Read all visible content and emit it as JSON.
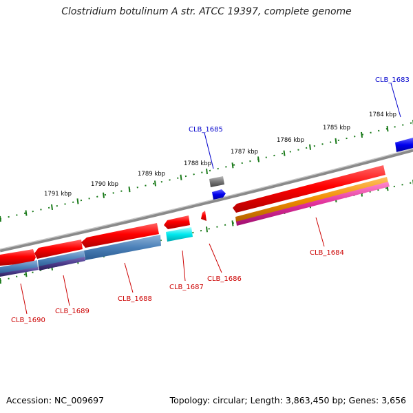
{
  "title": "Clostridium botulinum A str. ATCC 19397, complete genome",
  "footer": {
    "accession": "Accession: NC_009697",
    "summary": "Topology: circular; Length: 3,863,450 bp; Genes: 3,656"
  },
  "ruler": {
    "kbp_labels": [
      "1791 kbp",
      "1790 kbp",
      "1789 kbp",
      "1788 kbp",
      "1787 kbp",
      "1786 kbp",
      "1785 kbp",
      "1784 kbp"
    ]
  },
  "gene_labels": [
    {
      "name": "CLB_1683",
      "color": "#0000cc"
    },
    {
      "name": "CLB_1685",
      "color": "#0000cc"
    },
    {
      "name": "CLB_1684",
      "color": "#cc0000"
    },
    {
      "name": "CLB_1686",
      "color": "#cc0000"
    },
    {
      "name": "CLB_1687",
      "color": "#cc0000"
    },
    {
      "name": "CLB_1688",
      "color": "#cc0000"
    },
    {
      "name": "CLB_1689",
      "color": "#cc0000"
    },
    {
      "name": "CLB_1690",
      "color": "#cc0000"
    }
  ],
  "colors": {
    "backbone": "#8a8a8a",
    "tick": "#1a7a1a",
    "cds_forward": "#e00000",
    "cds_reverse": "#ff0000",
    "rna_blue": "#0000ee",
    "cyan": "#00e0e8",
    "steel_blue": "#4b80b8",
    "purple": "#4a3a8a",
    "orange": "#f08c00",
    "magenta": "#e0309a",
    "grey_feature": "#555555"
  }
}
